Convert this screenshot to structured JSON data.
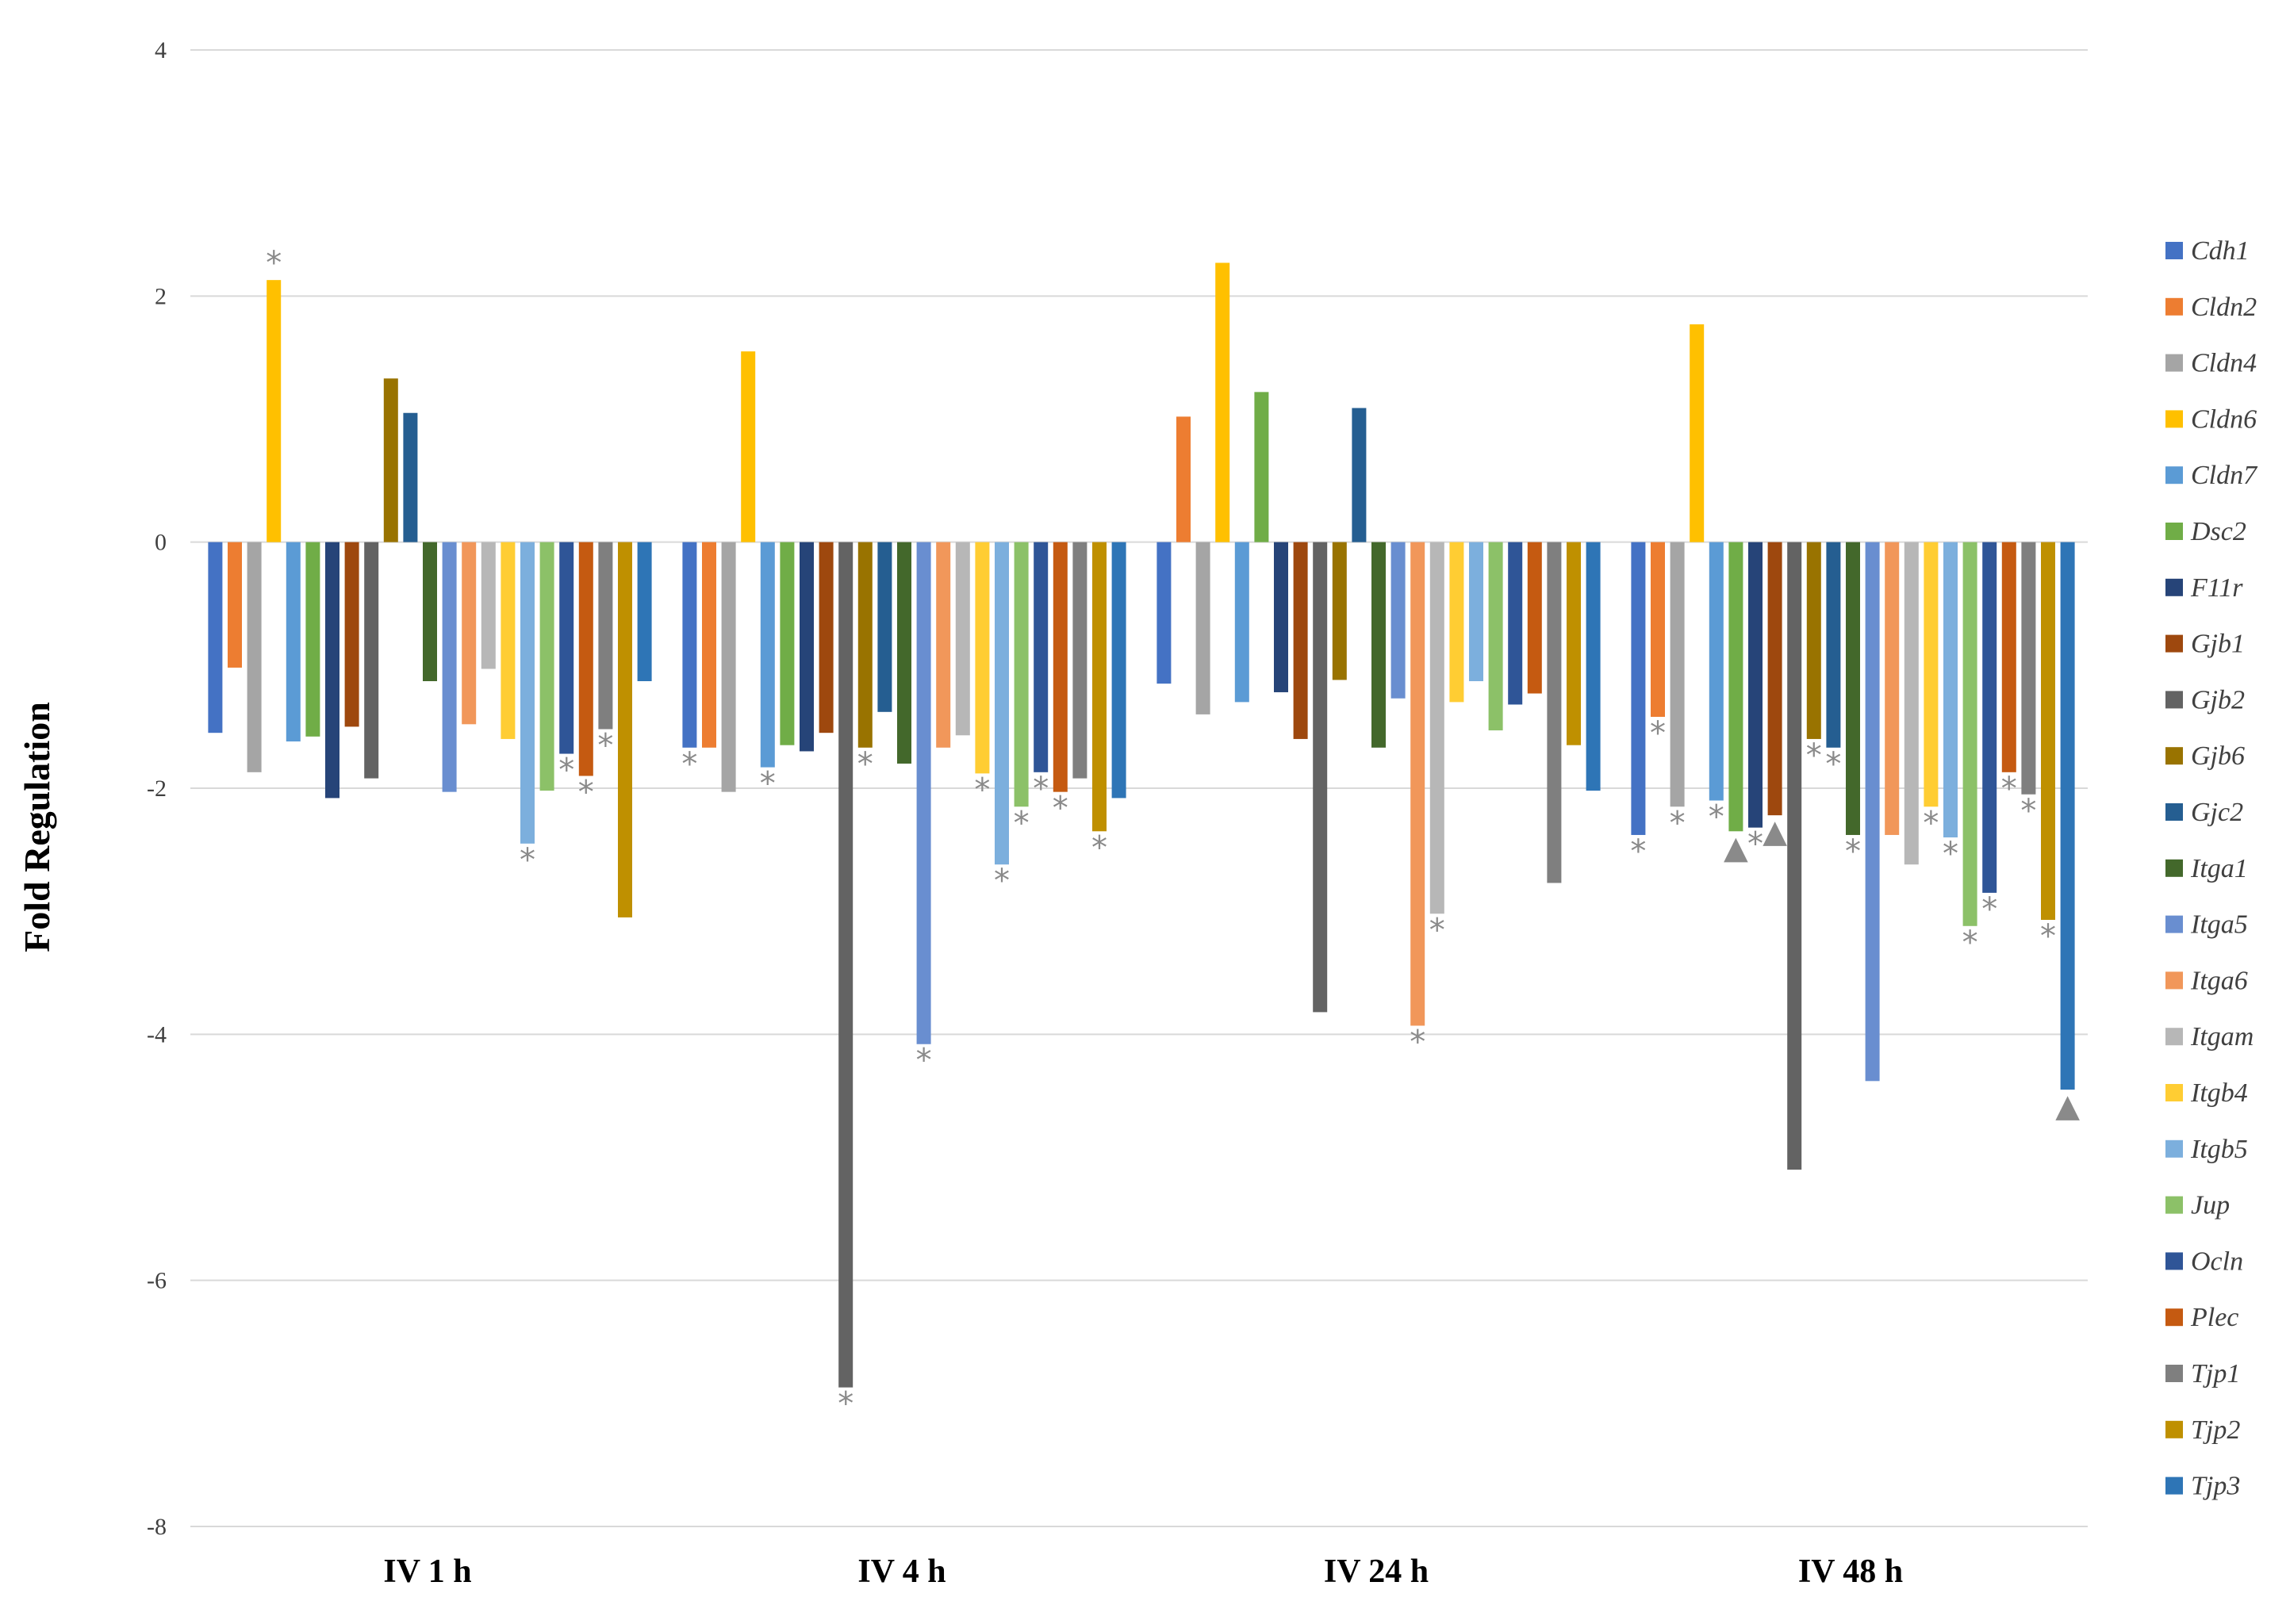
{
  "chart_data": {
    "type": "bar",
    "title": "",
    "xlabel": "",
    "ylabel": "Fold Regulation",
    "ylim": [
      -8,
      4
    ],
    "yticks": [
      "4",
      "2",
      "0",
      "-2",
      "-4",
      "-6",
      "-8"
    ],
    "grid": true,
    "legend_position": "right",
    "categories": [
      "IV 1 h",
      "IV 4 h",
      "IV 24 h",
      "IV 48 h"
    ],
    "series": [
      {
        "name": "Cdh1",
        "color": "#4472C4",
        "values": [
          -1.55,
          -1.67,
          -1.15,
          -2.38
        ],
        "marks": [
          "",
          "*",
          "",
          "*"
        ]
      },
      {
        "name": "Cldn2",
        "color": "#ED7D31",
        "values": [
          -1.02,
          -1.67,
          1.02,
          -1.42
        ],
        "marks": [
          "",
          "",
          "",
          "*"
        ]
      },
      {
        "name": "Cldn4",
        "color": "#A5A5A5",
        "values": [
          -1.87,
          -2.03,
          -1.4,
          -2.15
        ],
        "marks": [
          "",
          "",
          "",
          "*"
        ]
      },
      {
        "name": "Cldn6",
        "color": "#FFC000",
        "values": [
          2.13,
          1.55,
          2.27,
          1.77
        ],
        "marks": [
          "*",
          "",
          "",
          ""
        ]
      },
      {
        "name": "Cldn7",
        "color": "#5B9BD5",
        "values": [
          -1.62,
          -1.83,
          -1.3,
          -2.1
        ],
        "marks": [
          "",
          "*",
          "",
          "*"
        ]
      },
      {
        "name": "Dsc2",
        "color": "#70AD47",
        "values": [
          -1.58,
          -1.65,
          1.22,
          -2.35
        ],
        "marks": [
          "",
          "",
          "",
          "▲"
        ]
      },
      {
        "name": "F11r",
        "color": "#264478",
        "values": [
          -2.08,
          -1.7,
          -1.22,
          -2.32
        ],
        "marks": [
          "",
          "",
          "",
          "*"
        ]
      },
      {
        "name": "Gjb1",
        "color": "#9E480E",
        "values": [
          -1.5,
          -1.55,
          -1.6,
          -2.22
        ],
        "marks": [
          "",
          "",
          "",
          "▲"
        ]
      },
      {
        "name": "Gjb2",
        "color": "#636363",
        "values": [
          -1.92,
          -6.87,
          -3.82,
          -5.1
        ],
        "marks": [
          "",
          "*",
          "",
          ""
        ]
      },
      {
        "name": "Gjb6",
        "color": "#997300",
        "values": [
          1.33,
          -1.67,
          -1.12,
          -1.6
        ],
        "marks": [
          "",
          "*",
          "",
          "*"
        ]
      },
      {
        "name": "Gjc2",
        "color": "#255E91",
        "values": [
          1.05,
          -1.38,
          1.09,
          -1.67
        ],
        "marks": [
          "",
          "",
          "",
          "*"
        ]
      },
      {
        "name": "Itga1",
        "color": "#43682B",
        "values": [
          -1.13,
          -1.8,
          -1.67,
          -2.38
        ],
        "marks": [
          "",
          "",
          "",
          "*"
        ]
      },
      {
        "name": "Itga5",
        "color": "#698ED0",
        "values": [
          -2.03,
          -4.08,
          -1.27,
          -4.38
        ],
        "marks": [
          "",
          "*",
          "",
          ""
        ]
      },
      {
        "name": "Itga6",
        "color": "#F1975A",
        "values": [
          -1.48,
          -1.67,
          -3.93,
          -2.38
        ],
        "marks": [
          "",
          "",
          "*",
          ""
        ]
      },
      {
        "name": "Itgam",
        "color": "#B7B7B7",
        "values": [
          -1.03,
          -1.57,
          -3.02,
          -2.62
        ],
        "marks": [
          "",
          "",
          "*",
          ""
        ]
      },
      {
        "name": "Itgb4",
        "color": "#FFCD33",
        "values": [
          -1.6,
          -1.88,
          -1.3,
          -2.15
        ],
        "marks": [
          "",
          "*",
          "",
          "*"
        ]
      },
      {
        "name": "Itgb5",
        "color": "#7CAFDD",
        "values": [
          -2.45,
          -2.62,
          -1.13,
          -2.4
        ],
        "marks": [
          "*",
          "*",
          "",
          "*"
        ]
      },
      {
        "name": "Jup",
        "color": "#8CC168",
        "values": [
          -2.02,
          -2.15,
          -1.53,
          -3.12
        ],
        "marks": [
          "",
          "*",
          "",
          "*"
        ]
      },
      {
        "name": "Ocln",
        "color": "#2F5597",
        "values": [
          -1.72,
          -1.87,
          -1.32,
          -2.85
        ],
        "marks": [
          "*",
          "*",
          "",
          "*"
        ]
      },
      {
        "name": "Plec",
        "color": "#C55A11",
        "values": [
          -1.9,
          -2.03,
          -1.23,
          -1.87
        ],
        "marks": [
          "*",
          "*",
          "",
          "*"
        ]
      },
      {
        "name": "Tjp1",
        "color": "#7F7F7F",
        "values": [
          -1.52,
          -1.92,
          -2.77,
          -2.05
        ],
        "marks": [
          "*",
          "",
          "",
          "*"
        ]
      },
      {
        "name": "Tjp2",
        "color": "#BF9000",
        "values": [
          -3.05,
          -2.35,
          -1.65,
          -3.07
        ],
        "marks": [
          "",
          "*",
          "",
          "*"
        ]
      },
      {
        "name": "Tjp3",
        "color": "#2E75B6",
        "values": [
          -1.13,
          -2.08,
          -2.02,
          -4.45
        ],
        "marks": [
          "",
          "",
          "",
          "▲"
        ]
      }
    ]
  }
}
